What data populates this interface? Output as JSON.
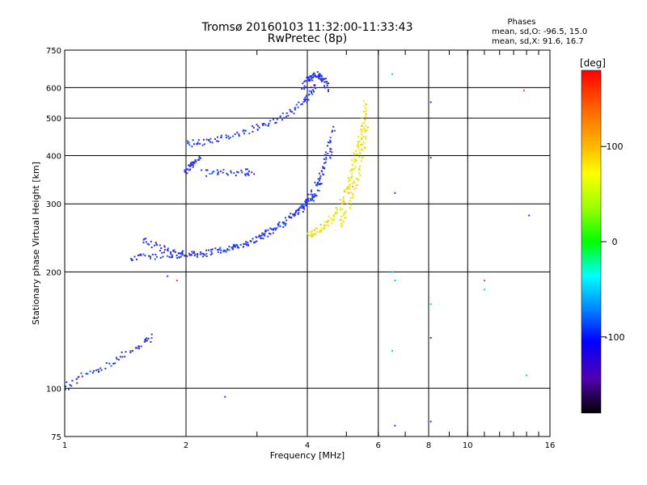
{
  "header": {
    "title_line1": "Tromsø 20160103 11:32:00-11:33:43",
    "title_line2": "RwPretec (8p)"
  },
  "phase_stats": {
    "title": "Phases",
    "o_line": "mean, sd,O: -96.5, 15.0",
    "x_line": "mean, sd,X:  91.6, 16.7"
  },
  "chart_data": {
    "type": "scatter",
    "title": "Tromsø 20160103 11:32:00-11:33:43",
    "subtitle": "RwPretec (8p)",
    "xlabel": "Frequency [MHz]",
    "ylabel": "Stationary phase Virtual Height [km]",
    "xscale": "log",
    "yscale": "log",
    "xlim": [
      1,
      16
    ],
    "ylim": [
      75,
      750
    ],
    "x_ticks": [
      1,
      2,
      4,
      6,
      8,
      10,
      16
    ],
    "y_ticks": [
      75,
      100,
      200,
      300,
      400,
      500,
      600,
      750
    ],
    "grid": true,
    "colorbar": {
      "label": "[deg]",
      "range": [
        -180,
        180
      ],
      "ticks": [
        100,
        0,
        -100
      ]
    },
    "series": [
      {
        "mode": "O",
        "color": "#2a3cff",
        "segments": [
          {
            "f": [
              1.0,
              1.1,
              1.25,
              1.4,
              1.55,
              1.65
            ],
            "h": [
              100,
              107,
              113,
              122,
              130,
              136
            ]
          },
          {
            "f": [
              1.45,
              1.6,
              1.8,
              2.0,
              2.3,
              2.6,
              2.9,
              3.2,
              3.5,
              3.8,
              4.0,
              4.2,
              4.4,
              4.6
            ],
            "h": [
              218,
              219,
              221,
              222,
              226,
              232,
              240,
              252,
              266,
              286,
              300,
              320,
              360,
              420
            ]
          },
          {
            "f": [
              1.55,
              1.7,
              1.85,
              2.0,
              2.2,
              2.5,
              2.8,
              3.1,
              3.4,
              3.7,
              3.9,
              4.1,
              4.3,
              4.5,
              4.65
            ],
            "h": [
              245,
              232,
              224,
              222,
              223,
              228,
              236,
              248,
              262,
              280,
              296,
              318,
              350,
              410,
              480
            ]
          },
          {
            "f": [
              2.0,
              2.2,
              2.4,
              2.7,
              3.0,
              3.3,
              3.6,
              3.9,
              4.05,
              4.2
            ],
            "h": [
              428,
              433,
              440,
              455,
              472,
              492,
              512,
              545,
              575,
              610
            ]
          },
          {
            "f": [
              3.9,
              4.0,
              4.1,
              4.2,
              4.3,
              4.4,
              4.5
            ],
            "h": [
              600,
              628,
              640,
              648,
              640,
              625,
              595
            ]
          },
          {
            "f": [
              2.0,
              2.05,
              2.1,
              2.15
            ],
            "h": [
              360,
              375,
              385,
              395
            ]
          },
          {
            "f": [
              2.2,
              2.45,
              2.75,
              2.95
            ],
            "h": [
              360,
              362,
              362,
              363
            ]
          }
        ]
      },
      {
        "mode": "X",
        "color": "#f0e000",
        "segments": [
          {
            "f": [
              4.0,
              4.2,
              4.4,
              4.6,
              4.8,
              5.0,
              5.1,
              5.2,
              5.3,
              5.4,
              5.5,
              5.6
            ],
            "h": [
              250,
              255,
              262,
              275,
              292,
              318,
              340,
              372,
              405,
              440,
              480,
              560
            ]
          },
          {
            "f": [
              4.8,
              5.0,
              5.2,
              5.35,
              5.5,
              5.6
            ],
            "h": [
              265,
              285,
              320,
              360,
              420,
              480
            ]
          }
        ]
      },
      {
        "mode": "scatter",
        "color": "#00b0ff",
        "points": [
          [
            6.5,
            650
          ],
          [
            6.6,
            320
          ],
          [
            6.5,
            200
          ],
          [
            6.6,
            190
          ],
          [
            6.5,
            125
          ],
          [
            6.6,
            80
          ],
          [
            8.1,
            550
          ],
          [
            8.1,
            395
          ],
          [
            8.1,
            165
          ],
          [
            8.1,
            135
          ],
          [
            8.1,
            82
          ],
          [
            11.0,
            190
          ],
          [
            11.0,
            180
          ],
          [
            13.8,
            590
          ],
          [
            14.2,
            280
          ],
          [
            14.0,
            108
          ],
          [
            2.5,
            95
          ],
          [
            1.9,
            190
          ],
          [
            1.8,
            195
          ]
        ]
      }
    ]
  }
}
